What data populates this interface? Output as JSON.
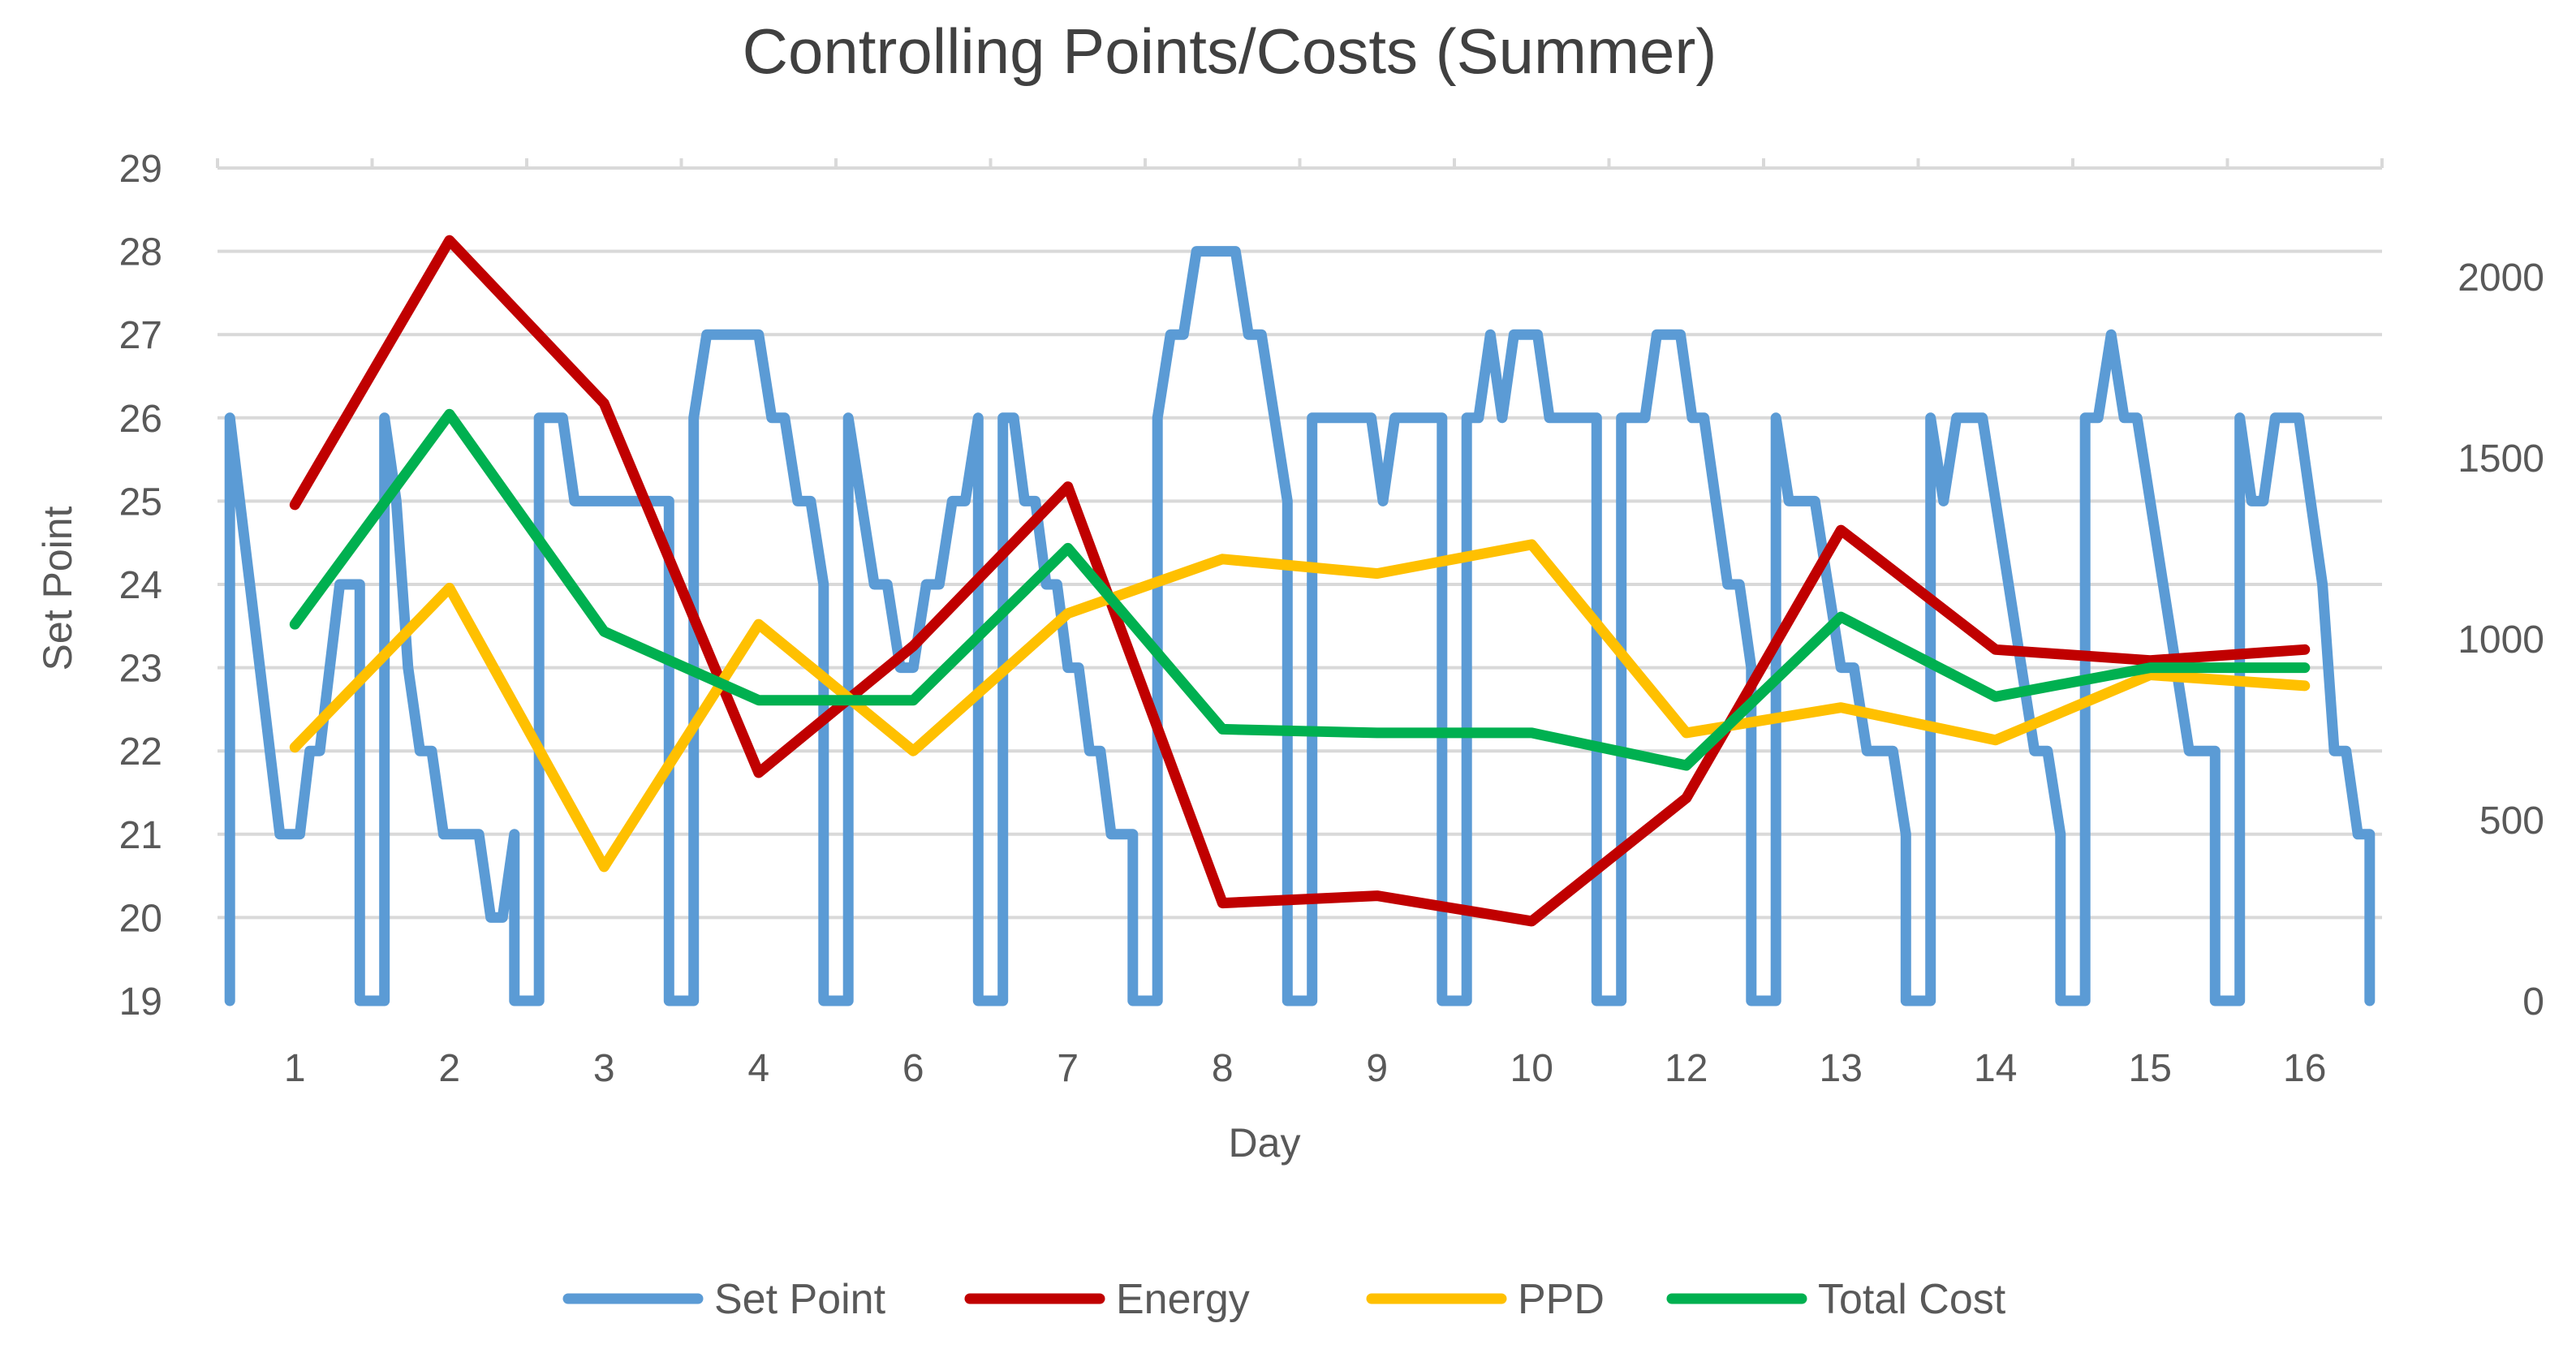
{
  "chart_data": {
    "type": "line",
    "title": "Controlling Points/Costs (Summer)",
    "xlabel": "Day",
    "ylabel": "Set Point",
    "ylim": [
      19,
      29
    ],
    "y2lim": [
      0,
      2300
    ],
    "y_ticks": [
      19,
      20,
      21,
      22,
      23,
      24,
      25,
      26,
      27,
      28,
      29
    ],
    "y2_ticks": [
      0,
      500,
      1000,
      1500,
      2000
    ],
    "categories": [
      "1",
      "2",
      "3",
      "4",
      "6",
      "7",
      "8",
      "9",
      "10",
      "12",
      "13",
      "14",
      "15",
      "16"
    ],
    "series": [
      {
        "name": "Energy",
        "axis": "secondary",
        "color": "#C00000",
        "values": [
          1370,
          2100,
          1650,
          630,
          980,
          1420,
          270,
          290,
          220,
          560,
          1300,
          970,
          940,
          970
        ]
      },
      {
        "name": "PPD",
        "axis": "secondary",
        "color": "#FFC000",
        "values": [
          700,
          1140,
          370,
          1040,
          690,
          1070,
          1220,
          1180,
          1260,
          740,
          810,
          720,
          900,
          870
        ]
      },
      {
        "name": "Total Cost",
        "axis": "secondary",
        "color": "#00B050",
        "values": [
          1040,
          1620,
          1020,
          830,
          830,
          1250,
          750,
          740,
          740,
          650,
          1060,
          840,
          920,
          920
        ]
      }
    ],
    "set_point": {
      "name": "Set Point",
      "axis": "primary",
      "color": "#5B9BD5",
      "days": [
        [
          26,
          25,
          24,
          23,
          22,
          21,
          21,
          21,
          22,
          22,
          23,
          24,
          24,
          24
        ],
        [
          26,
          25,
          23,
          22,
          22,
          21,
          21,
          21,
          21,
          20,
          20,
          21
        ],
        [
          26,
          26,
          26,
          25,
          25,
          25,
          25,
          25,
          25,
          25,
          25,
          25
        ],
        [
          26,
          27,
          27,
          27,
          27,
          27,
          26,
          26,
          25,
          25,
          24
        ],
        [
          26,
          25,
          24,
          24,
          23,
          23,
          24,
          24,
          25,
          25,
          26
        ],
        [
          26,
          26,
          25,
          25,
          24,
          24,
          23,
          23,
          22,
          22,
          21,
          21,
          21
        ],
        [
          26,
          27,
          27,
          28,
          28,
          28,
          28,
          27,
          27,
          26,
          25
        ],
        [
          26,
          26,
          26,
          26,
          26,
          26,
          25,
          26,
          26,
          26,
          26,
          26
        ],
        [
          26,
          26,
          27,
          26,
          27,
          27,
          27,
          26,
          26,
          26,
          26,
          26
        ],
        [
          26,
          26,
          26,
          27,
          27,
          27,
          26,
          26,
          25,
          24,
          24,
          23
        ],
        [
          26,
          25,
          25,
          25,
          24,
          23,
          23,
          22,
          22,
          22,
          21
        ],
        [
          26,
          25,
          26,
          26,
          26,
          25,
          24,
          23,
          22,
          22,
          21
        ],
        [
          26,
          26,
          27,
          26,
          26,
          25,
          24,
          23,
          22,
          22,
          22
        ],
        [
          26,
          25,
          25,
          26,
          26,
          26,
          25,
          24,
          22,
          22,
          21,
          21
        ]
      ]
    },
    "legend": [
      {
        "label": "Set Point",
        "color": "#5B9BD5"
      },
      {
        "label": "Energy",
        "color": "#C00000"
      },
      {
        "label": "PPD",
        "color": "#FFC000"
      },
      {
        "label": "Total Cost",
        "color": "#00B050"
      }
    ],
    "legend_position": "bottom",
    "grid": true
  }
}
